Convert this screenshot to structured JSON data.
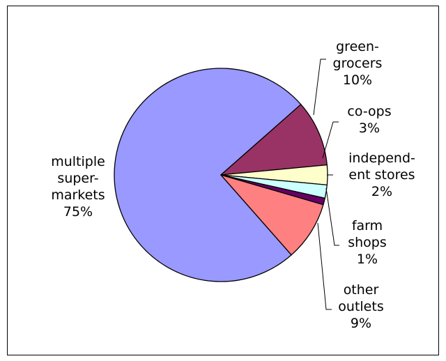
{
  "chart_data": {
    "type": "pie",
    "title": "",
    "legend": "none",
    "slices": [
      {
        "label_lines": [
          "multiple",
          "super-",
          "markets",
          "75%"
        ],
        "value": 75,
        "color": "#9999ff"
      },
      {
        "label_lines": [
          "green-",
          "grocers",
          "10%"
        ],
        "value": 10,
        "color": "#993366"
      },
      {
        "label_lines": [
          "co-ops",
          "3%"
        ],
        "value": 3,
        "color": "#ffffcc"
      },
      {
        "label_lines": [
          "independ-",
          "ent stores",
          "2%"
        ],
        "value": 2,
        "color": "#ccffff"
      },
      {
        "label_lines": [
          "farm",
          "shops",
          "1%"
        ],
        "value": 1,
        "color": "#660066"
      },
      {
        "label_lines": [
          "other",
          "outlets",
          "9%"
        ],
        "value": 9,
        "color": "#ff8080"
      }
    ]
  }
}
